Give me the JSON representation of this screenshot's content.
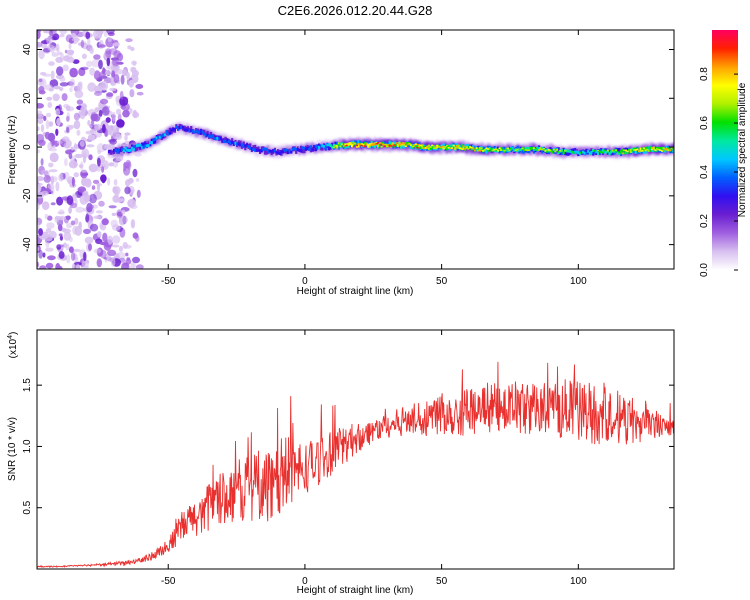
{
  "title": "C2E6.2026.012.20.44.G28",
  "chart_data": [
    {
      "type": "heatmap",
      "xlabel": "Height of straight line (km)",
      "ylabel": "Frequency (Hz)",
      "xlim": [
        -98,
        135
      ],
      "ylim": [
        -50,
        48
      ],
      "xticks": [
        -50,
        0,
        50,
        100
      ],
      "yticks": [
        -40,
        -20,
        0,
        20,
        40
      ],
      "grid": false,
      "noise_region_x": [
        -98,
        -67
      ],
      "signal_ridge": {
        "x": [
          -72,
          -65,
          -58,
          -52,
          -47,
          -42,
          -36,
          -30,
          -24,
          -18,
          -10,
          -2,
          5,
          15,
          25,
          35,
          45,
          55,
          65,
          75,
          85,
          95,
          105,
          115,
          125,
          135
        ],
        "freq": [
          -2,
          -1,
          1,
          5,
          8,
          7,
          5,
          3,
          1,
          -1,
          -2,
          -1,
          0,
          1,
          1,
          1,
          0,
          0,
          -1,
          -1,
          -1,
          -2,
          -2,
          -2,
          -1,
          -1
        ],
        "amplitude": [
          0.35,
          0.55,
          0.6,
          0.5,
          0.45,
          0.45,
          0.5,
          0.5,
          0.5,
          0.45,
          0.45,
          0.45,
          0.5,
          0.9,
          0.95,
          0.9,
          0.85,
          0.85,
          0.8,
          0.7,
          0.75,
          0.65,
          0.6,
          0.75,
          0.85,
          0.8
        ]
      },
      "colorbar": {
        "label": "Normalized spectral amplitude",
        "range": [
          0,
          0.98
        ],
        "ticks": [
          "0.0",
          "0.2",
          "0.4",
          "0.6",
          "0.8"
        ],
        "colormap": [
          "#ffffff",
          "#d8c0f0",
          "#a060e0",
          "#6a1fd0",
          "#3010f0",
          "#0060ff",
          "#00c8ff",
          "#00e8a0",
          "#00e000",
          "#b0f000",
          "#ffff00",
          "#ffa000",
          "#ff2000",
          "#ff0060"
        ]
      }
    },
    {
      "type": "line",
      "xlabel": "Height of straight line (km)",
      "ylabel": "SNR (10 * v/v)",
      "yscale_label": "(x10",
      "yscale_exp": "4",
      "xlim": [
        -98,
        135
      ],
      "ylim": [
        0,
        1.95
      ],
      "xticks": [
        -50,
        0,
        50,
        100
      ],
      "yticks": [
        0.5,
        1.0,
        1.5
      ],
      "color": "#e8302e",
      "series": [
        {
          "x": [
            -98,
            -90,
            -80,
            -70,
            -62,
            -56,
            -52,
            -48,
            -45,
            -40,
            -35,
            -30,
            -25,
            -20,
            -15,
            -10,
            -5,
            0,
            5,
            10,
            15,
            20,
            25,
            30,
            35,
            40,
            45,
            50,
            55,
            60,
            65,
            70,
            75,
            80,
            85,
            90,
            95,
            100,
            105,
            110,
            115,
            120,
            125,
            130,
            135
          ],
          "values": [
            0.02,
            0.02,
            0.03,
            0.04,
            0.06,
            0.1,
            0.16,
            0.24,
            0.35,
            0.42,
            0.5,
            0.58,
            0.64,
            0.66,
            0.7,
            0.76,
            0.8,
            0.82,
            0.88,
            0.95,
            1.02,
            1.08,
            1.13,
            1.17,
            1.2,
            1.22,
            1.25,
            1.27,
            1.28,
            1.3,
            1.3,
            1.32,
            1.3,
            1.31,
            1.32,
            1.3,
            1.31,
            1.3,
            1.28,
            1.27,
            1.24,
            1.22,
            1.2,
            1.18,
            1.15
          ],
          "noise_amplitude": [
            0.0,
            0.0,
            0.005,
            0.01,
            0.02,
            0.03,
            0.05,
            0.08,
            0.12,
            0.16,
            0.2,
            0.22,
            0.25,
            0.28,
            0.3,
            0.32,
            0.28,
            0.22,
            0.2,
            0.18,
            0.16,
            0.12,
            0.1,
            0.1,
            0.12,
            0.14,
            0.16,
            0.18,
            0.2,
            0.2,
            0.2,
            0.2,
            0.22,
            0.22,
            0.22,
            0.24,
            0.24,
            0.25,
            0.26,
            0.26,
            0.24,
            0.2,
            0.15,
            0.1,
            0.08
          ]
        }
      ]
    }
  ]
}
